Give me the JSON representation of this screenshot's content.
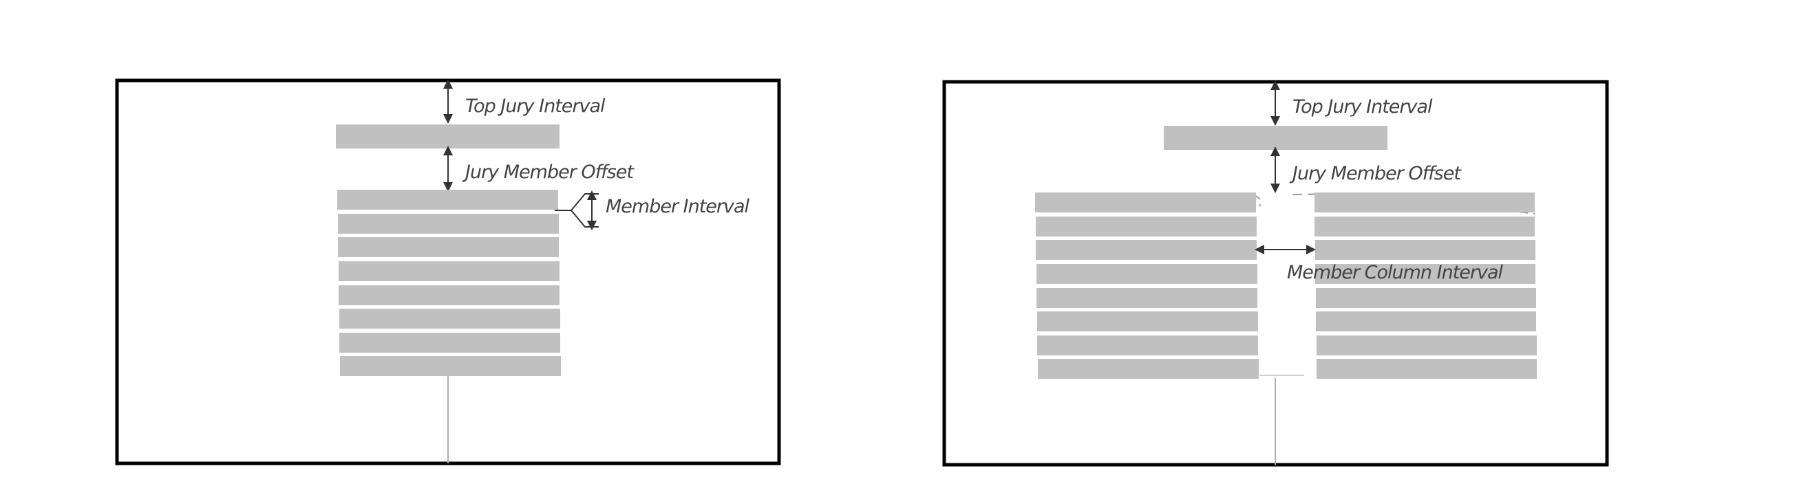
{
  "panels": [
    {
      "name": "single-column",
      "annotations": {
        "top_interval": "Top Jury Interval",
        "member_offset": "Jury Member Offset",
        "member_interval": "Member Interval"
      },
      "member_rows": 8,
      "columns": 1
    },
    {
      "name": "two-column",
      "annotations": {
        "top_interval": "Top Jury Interval",
        "member_offset": "Jury Member Offset",
        "column_interval": "Member Column Interval"
      },
      "member_rows": 8,
      "columns": 2
    }
  ],
  "colors": {
    "frame": "#000000",
    "block": "#c0c0c0",
    "annotation": "#444444",
    "background": "#ffffff"
  }
}
